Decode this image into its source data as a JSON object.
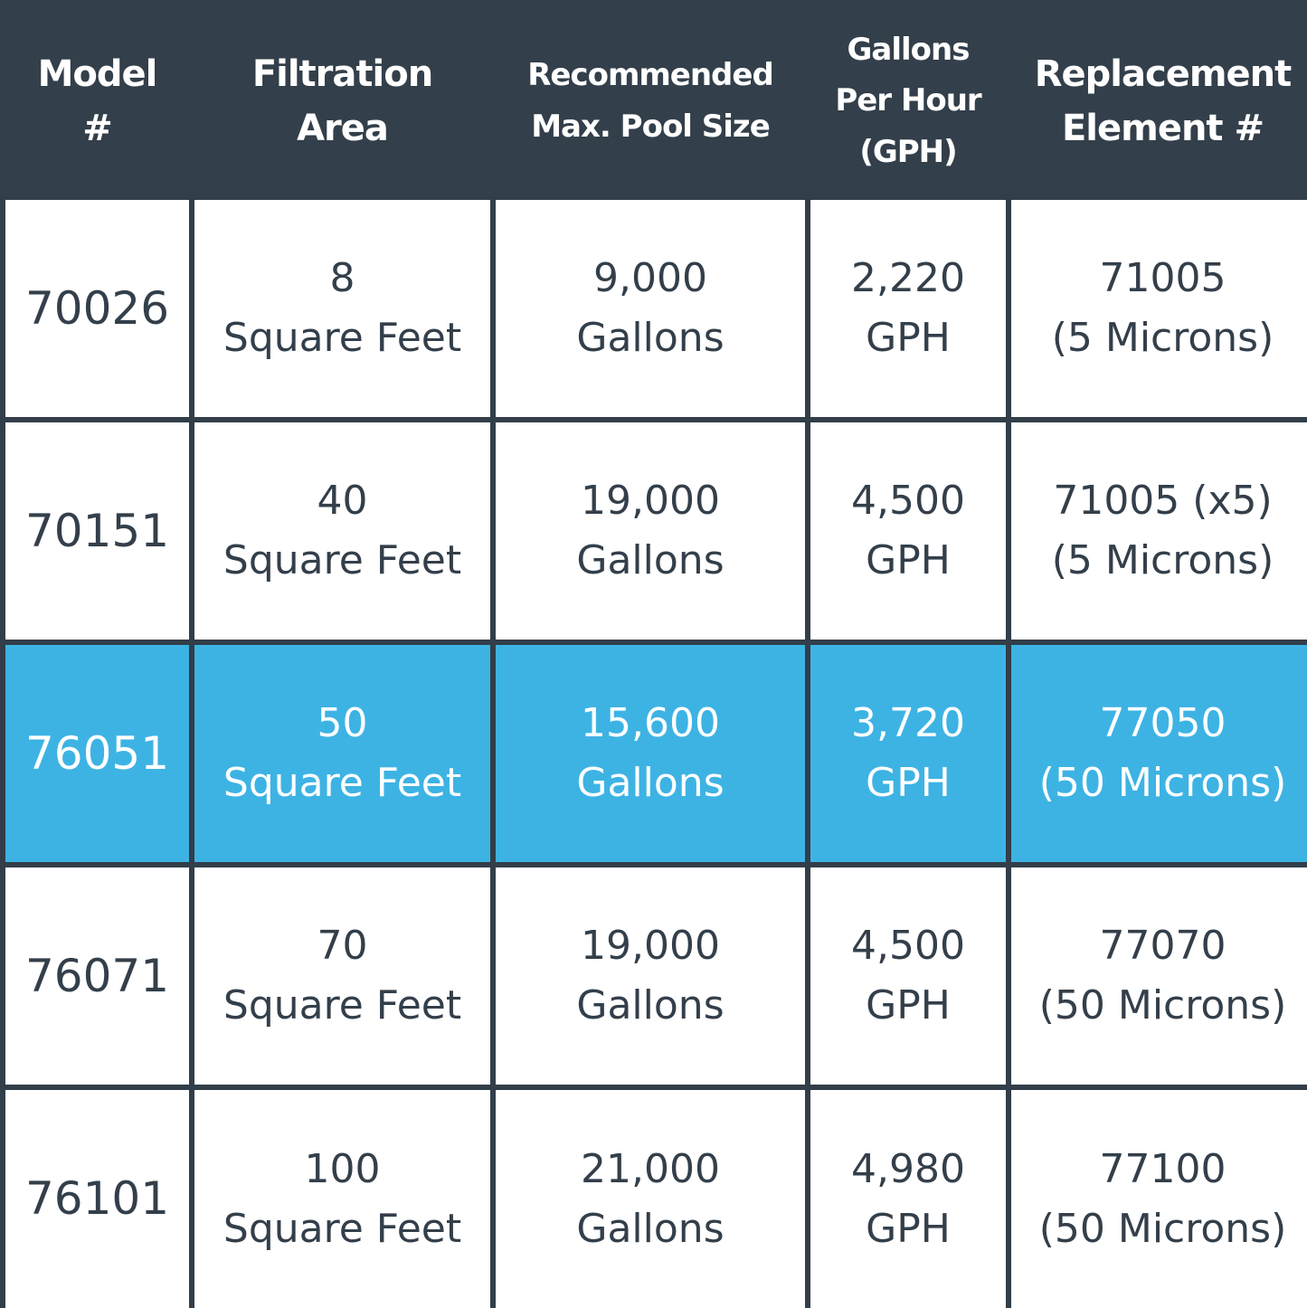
{
  "header": {
    "columns": [
      {
        "lines": [
          "Model",
          "#"
        ]
      },
      {
        "lines": [
          "Filtration",
          "Area"
        ]
      },
      {
        "lines": [
          "Recommended",
          "Max. Pool Size"
        ]
      },
      {
        "lines": [
          "Gallons",
          "Per Hour",
          "(GPH)"
        ]
      },
      {
        "lines": [
          "Replacement",
          "Element #"
        ]
      }
    ]
  },
  "colors": {
    "header_bg": "#333f4a",
    "border": "#323e49",
    "highlight_bg": "#3db3e4",
    "text_dark": "#333f4a",
    "text_light": "#ffffff"
  },
  "rows": [
    {
      "model": "70026",
      "area": [
        "8",
        "Square Feet"
      ],
      "pool": [
        "9,000",
        "Gallons"
      ],
      "gph": [
        "2,220",
        "GPH"
      ],
      "element": [
        "71005",
        "(5 Microns)"
      ],
      "highlighted": false
    },
    {
      "model": "70151",
      "area": [
        "40",
        "Square Feet"
      ],
      "pool": [
        "19,000",
        "Gallons"
      ],
      "gph": [
        "4,500",
        "GPH"
      ],
      "element": [
        "71005 (x5)",
        "(5 Microns)"
      ],
      "highlighted": false
    },
    {
      "model": "76051",
      "area": [
        "50",
        "Square Feet"
      ],
      "pool": [
        "15,600",
        "Gallons"
      ],
      "gph": [
        "3,720",
        "GPH"
      ],
      "element": [
        "77050",
        "(50 Microns)"
      ],
      "highlighted": true
    },
    {
      "model": "76071",
      "area": [
        "70",
        "Square Feet"
      ],
      "pool": [
        "19,000",
        "Gallons"
      ],
      "gph": [
        "4,500",
        "GPH"
      ],
      "element": [
        "77070",
        "(50 Microns)"
      ],
      "highlighted": false
    },
    {
      "model": "76101",
      "area": [
        "100",
        "Square Feet"
      ],
      "pool": [
        "21,000",
        "Gallons"
      ],
      "gph": [
        "4,980",
        "GPH"
      ],
      "element": [
        "77100",
        "(50 Microns)"
      ],
      "highlighted": false
    }
  ]
}
